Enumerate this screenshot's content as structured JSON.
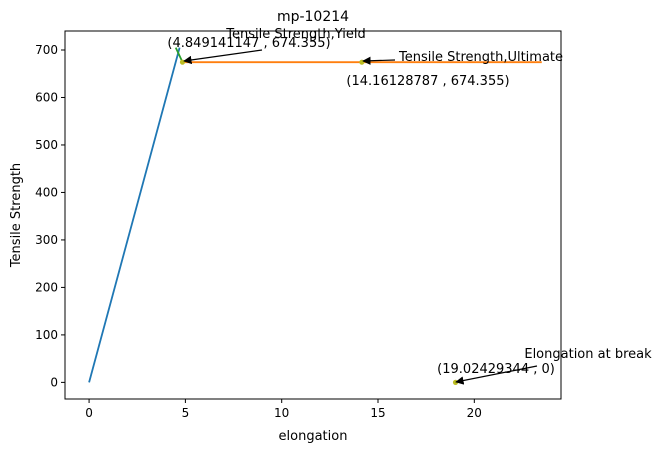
{
  "chart_data": {
    "type": "line",
    "title": "mp-10214",
    "xlabel": "elongation",
    "ylabel": "Tensile Strength",
    "xlim": [
      -1.25,
      24.5
    ],
    "ylim": [
      -35,
      740
    ],
    "xticks": [
      0,
      5,
      10,
      15,
      20
    ],
    "yticks": [
      0,
      100,
      200,
      300,
      400,
      500,
      600,
      700
    ],
    "grid": false,
    "series": [
      {
        "color": "#1f77b4",
        "x": [
          0,
          4.7
        ],
        "y": [
          0,
          705
        ]
      },
      {
        "color": "#2ca02c",
        "x": [
          4.5,
          4.85
        ],
        "y": [
          705,
          674.355
        ]
      },
      {
        "color": "#ff7f0e",
        "x": [
          4.85,
          23.5
        ],
        "y": [
          674.355,
          674.355
        ]
      }
    ],
    "points": [
      {
        "x": 4.849141147,
        "y": 674.355,
        "color": "#bcbd22"
      },
      {
        "x": 14.16128787,
        "y": 674.355,
        "color": "#bcbd22"
      },
      {
        "x": 19.02429344,
        "y": 0,
        "color": "#bcbd22"
      }
    ],
    "annotations": [
      {
        "label": "Tensile Strength,Yield",
        "coords": "(4.849141147 , 674.355)",
        "x": 4.849141147,
        "y": 674.355
      },
      {
        "label": "Tensile Strength,Ultimate",
        "coords": "(14.16128787 , 674.355)",
        "x": 14.16128787,
        "y": 674.355
      },
      {
        "label": "Elongation at break",
        "coords": "(19.02429344 , 0)",
        "x": 19.02429344,
        "y": 0
      }
    ]
  }
}
